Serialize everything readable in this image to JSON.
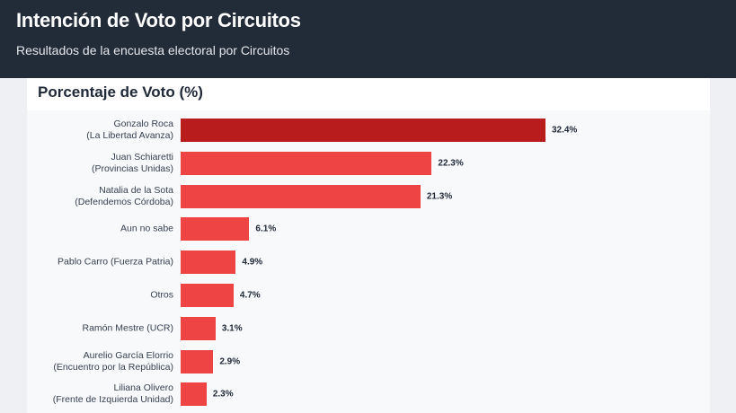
{
  "header": {
    "title": "Intención de Voto por Circuitos",
    "subtitle": "Resultados de la encuesta electoral por Circuitos"
  },
  "chart_data": {
    "type": "bar",
    "orientation": "horizontal",
    "title": "Porcentaje de Voto (%)",
    "categories": [
      "Gonzalo Roca\n(La Libertad Avanza)",
      "Juan Schiaretti\n(Provincias Unidas)",
      "Natalia de la Sota\n(Defendemos Córdoba)",
      "Aun no sabe",
      "Pablo Carro (Fuerza Patria)",
      "Otros",
      "Ramón Mestre (UCR)",
      "Aurelio García Elorrio\n(Encuentro por la República)",
      "Liliana Olivero\n(Frente de Izquierda Unidad)"
    ],
    "values": [
      32.4,
      22.3,
      21.3,
      6.1,
      4.9,
      4.7,
      3.1,
      2.9,
      2.3
    ],
    "value_labels": [
      "32.4%",
      "22.3%",
      "21.3%",
      "6.1%",
      "4.9%",
      "4.7%",
      "3.1%",
      "2.9%",
      "2.3%"
    ],
    "colors": [
      "#b91c1c",
      "#ef4444",
      "#ef4444",
      "#ef4444",
      "#ef4444",
      "#ef4444",
      "#ef4444",
      "#ef4444",
      "#ef4444"
    ]
  }
}
